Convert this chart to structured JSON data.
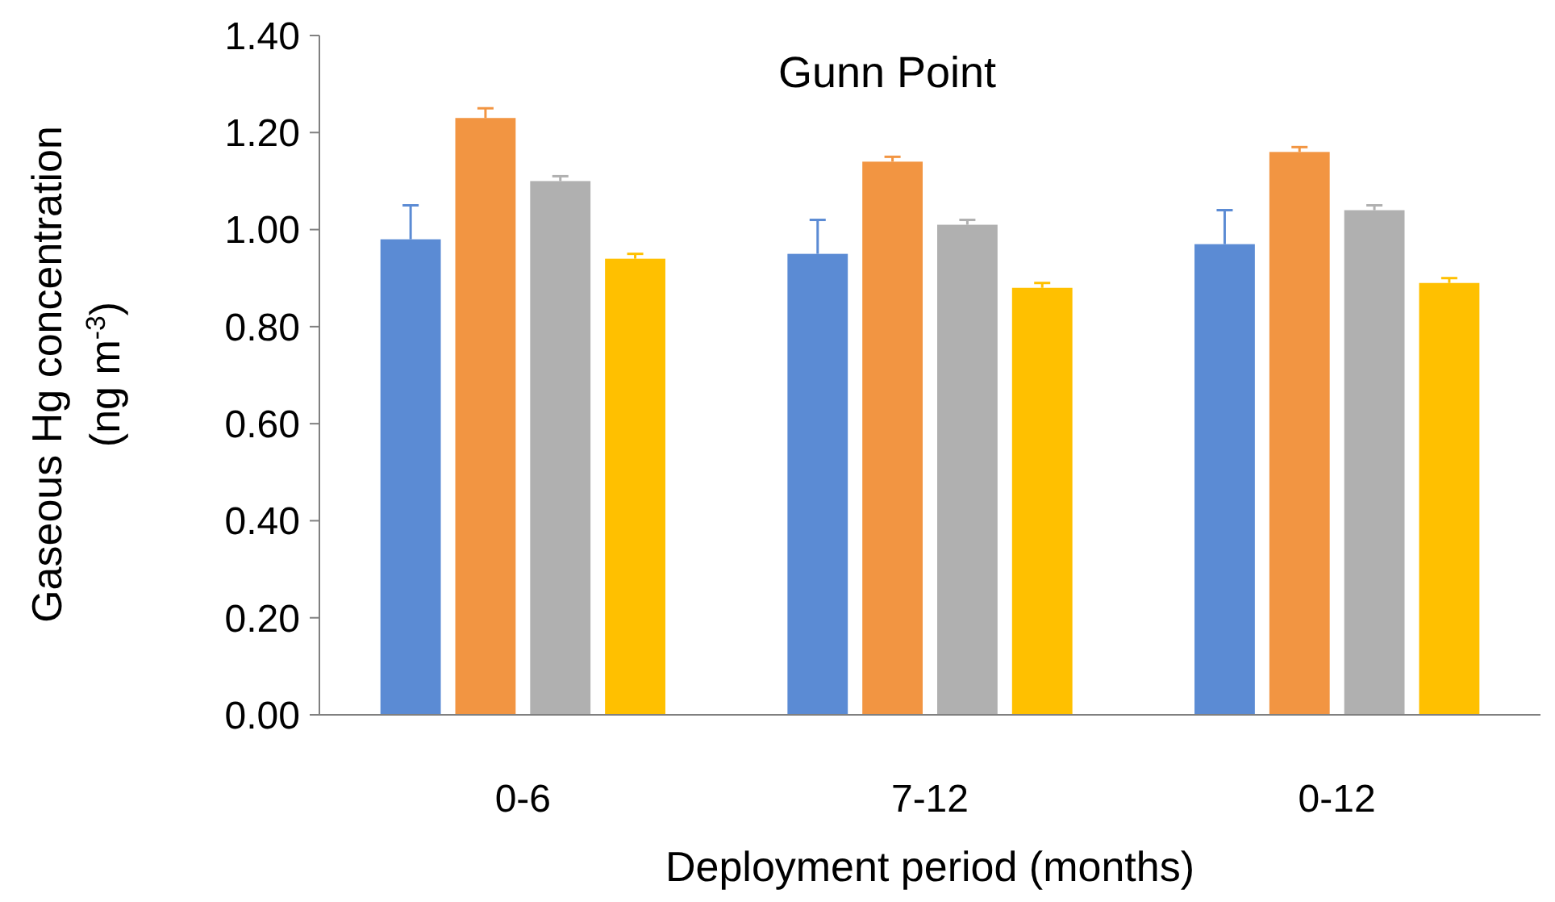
{
  "chart_data": {
    "type": "bar",
    "title": "Gunn Point",
    "xlabel": "Deployment period (months)",
    "ylabel": "Gaseous Hg concentration\n(ng m$^{-3}$)",
    "categories": [
      "0-6",
      "7-12",
      "0-12"
    ],
    "series": [
      {
        "color": "#5b8bd4",
        "values": [
          0.98,
          0.95,
          0.97
        ],
        "errors": [
          [
            0.98,
            1.05
          ],
          [
            0.95,
            1.02
          ],
          [
            0.97,
            1.04
          ]
        ]
      },
      {
        "color": "#f29542",
        "values": [
          1.23,
          1.14,
          1.16
        ],
        "errors": [
          [
            1.23,
            1.25
          ],
          [
            1.14,
            1.15
          ],
          [
            1.16,
            1.17
          ]
        ]
      },
      {
        "color": "#b0b0b0",
        "values": [
          1.1,
          1.01,
          1.04
        ],
        "errors": [
          [
            1.1,
            1.11
          ],
          [
            1.01,
            1.02
          ],
          [
            1.04,
            1.05
          ]
        ]
      },
      {
        "color": "#ffc000",
        "values": [
          0.94,
          0.88,
          0.89
        ],
        "errors": [
          [
            0.94,
            0.95
          ],
          [
            0.88,
            0.89
          ],
          [
            0.89,
            0.9
          ]
        ]
      }
    ],
    "ylim": [
      0,
      1.4
    ],
    "yticks": [
      {
        "value": 0,
        "label": "0.00"
      },
      {
        "value": 0.2,
        "label": "0.20"
      },
      {
        "value": 0.4,
        "label": "0.40"
      },
      {
        "value": 0.6,
        "label": "0.60"
      },
      {
        "value": 0.8,
        "label": "0.80"
      },
      {
        "value": 1,
        "label": "1.00"
      },
      {
        "value": 1.2,
        "label": "1.20"
      },
      {
        "value": 1.4,
        "label": "1.40"
      }
    ],
    "grid": false
  }
}
